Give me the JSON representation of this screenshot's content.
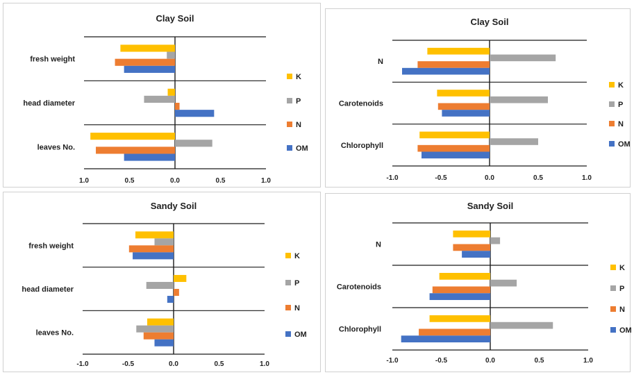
{
  "series_colors": {
    "K": "#FFC000",
    "P": "#A5A5A5",
    "N": "#ED7D31",
    "OM": "#4472C4"
  },
  "chart_data": [
    {
      "type": "bar",
      "orientation": "horizontal",
      "title": "Clay Soil",
      "categories": [
        "fresh weight",
        "head diameter",
        "leaves No."
      ],
      "x_tick_labels": [
        "1.0",
        "0.5",
        "0.0",
        "0.5",
        "1.0"
      ],
      "xlim": [
        -1,
        1
      ],
      "grid": "horizontal separators",
      "legend": "right",
      "series": [
        {
          "name": "K",
          "values": [
            -0.6,
            -0.08,
            -0.93
          ]
        },
        {
          "name": "P",
          "values": [
            -0.09,
            -0.34,
            0.41
          ]
        },
        {
          "name": "N",
          "values": [
            -0.66,
            0.05,
            -0.87
          ]
        },
        {
          "name": "OM",
          "values": [
            -0.56,
            0.43,
            -0.56
          ]
        }
      ]
    },
    {
      "type": "bar",
      "orientation": "horizontal",
      "title": "Clay Soil",
      "categories": [
        "N",
        "Carotenoids",
        "Chlorophyll"
      ],
      "x_tick_labels": [
        "-1.0",
        "-0.5",
        "0.0",
        "0.5",
        "1.0"
      ],
      "xlim": [
        -1,
        1
      ],
      "grid": "horizontal separators",
      "legend": "right",
      "series": [
        {
          "name": "K",
          "values": [
            -0.64,
            -0.54,
            -0.72
          ]
        },
        {
          "name": "P",
          "values": [
            0.68,
            0.6,
            0.5
          ]
        },
        {
          "name": "N",
          "values": [
            -0.74,
            -0.53,
            -0.74
          ]
        },
        {
          "name": "OM",
          "values": [
            -0.9,
            -0.49,
            -0.7
          ]
        }
      ]
    },
    {
      "type": "bar",
      "orientation": "horizontal",
      "title": "Sandy Soil",
      "categories": [
        "fresh weight",
        "head diameter",
        "leaves No."
      ],
      "x_tick_labels": [
        "-1.0",
        "-0.5",
        "0.0",
        "0.5",
        "1.0"
      ],
      "xlim": [
        -1,
        1
      ],
      "grid": "horizontal separators",
      "legend": "right",
      "series": [
        {
          "name": "K",
          "values": [
            -0.42,
            0.14,
            -0.29
          ]
        },
        {
          "name": "P",
          "values": [
            -0.21,
            -0.3,
            -0.41
          ]
        },
        {
          "name": "N",
          "values": [
            -0.49,
            0.06,
            -0.33
          ]
        },
        {
          "name": "OM",
          "values": [
            -0.45,
            -0.07,
            -0.21
          ]
        }
      ]
    },
    {
      "type": "bar",
      "orientation": "horizontal",
      "title": "Sandy Soil",
      "categories": [
        "N",
        "Carotenoids",
        "Chlorophyll"
      ],
      "x_tick_labels": [
        "-1.0",
        "-0.5",
        "0.0",
        "0.5",
        "1.0"
      ],
      "xlim": [
        -1,
        1
      ],
      "grid": "horizontal separators",
      "legend": "right",
      "series": [
        {
          "name": "K",
          "values": [
            -0.38,
            -0.52,
            -0.62
          ]
        },
        {
          "name": "P",
          "values": [
            0.1,
            0.27,
            0.64
          ]
        },
        {
          "name": "N",
          "values": [
            -0.38,
            -0.59,
            -0.73
          ]
        },
        {
          "name": "OM",
          "values": [
            -0.29,
            -0.62,
            -0.91
          ]
        }
      ]
    }
  ]
}
